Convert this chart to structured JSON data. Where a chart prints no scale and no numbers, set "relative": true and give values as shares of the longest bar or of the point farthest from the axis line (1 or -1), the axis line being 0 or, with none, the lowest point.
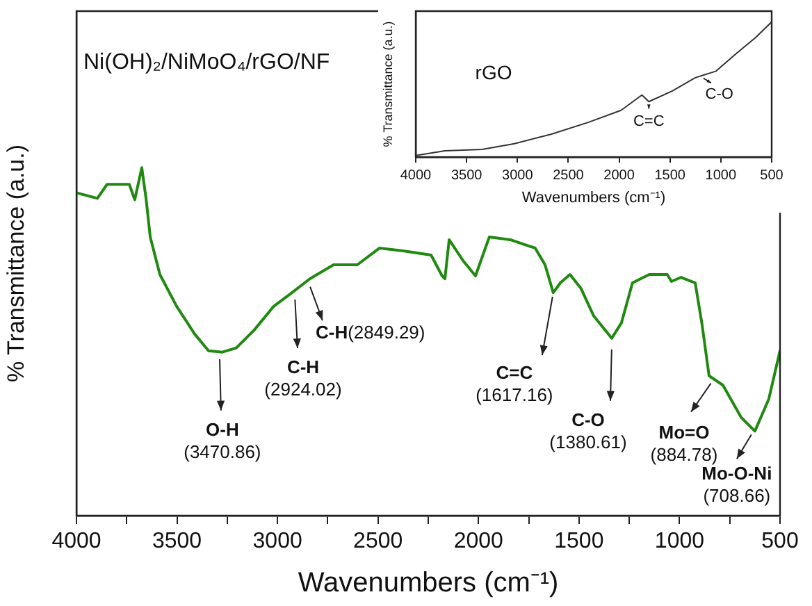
{
  "chart_data": [
    {
      "type": "line",
      "title": "Ni(OH)₂/NiMoO₄/rGO/NF",
      "xlabel": "Wavenumbers (cm⁻¹)",
      "ylabel": "% Transmittance (a.u.)",
      "relative": true,
      "tick_labels": "x",
      "grid": false,
      "legend": false,
      "marker": "none",
      "line_style": "solid",
      "xlim": [
        4000,
        500
      ],
      "xticks": [
        4000,
        {
          "value": 3750,
          "label": null
        },
        3500,
        {
          "value": 3250,
          "label": null
        },
        3000,
        {
          "value": 2750,
          "label": null
        },
        2500,
        {
          "value": 2250,
          "label": null
        },
        2000,
        {
          "value": 1750,
          "label": null
        },
        1500,
        {
          "value": 1250,
          "label": null
        },
        1000,
        {
          "value": 750,
          "label": null
        },
        500
      ],
      "series": [
        {
          "color": "#1f8a0f",
          "x": [
            4000,
            3896,
            3848,
            3737,
            3710,
            3675,
            3654,
            3633,
            3585,
            3502,
            3412,
            3343,
            3274,
            3205,
            3115,
            3018,
            2928,
            2838,
            2721,
            2603,
            2492,
            2375,
            2236,
            2181,
            2167,
            2146,
            2077,
            2015,
            1946,
            1842,
            1718,
            1669,
            1628,
            1593,
            1545,
            1490,
            1427,
            1337,
            1289,
            1234,
            1151,
            1061,
            1040,
            992,
            922,
            888,
            853,
            784,
            694,
            625,
            556,
            500
          ],
          "values": [
            0.928,
            0.912,
            0.952,
            0.952,
            0.908,
            1.0,
            0.912,
            0.801,
            0.693,
            0.602,
            0.522,
            0.474,
            0.47,
            0.482,
            0.534,
            0.602,
            0.641,
            0.681,
            0.721,
            0.721,
            0.769,
            0.761,
            0.749,
            0.689,
            0.681,
            0.793,
            0.733,
            0.689,
            0.801,
            0.793,
            0.769,
            0.721,
            0.641,
            0.669,
            0.693,
            0.653,
            0.574,
            0.51,
            0.554,
            0.669,
            0.693,
            0.693,
            0.673,
            0.685,
            0.669,
            0.55,
            0.402,
            0.375,
            0.283,
            0.243,
            0.335,
            0.474
          ]
        }
      ],
      "annotations": [
        {
          "text": "O-H\n(3470.86)",
          "x": 3288,
          "y": 0.462
        },
        {
          "text": "C-H\n(2924.02)",
          "x": 2914,
          "y": 0.633
        },
        {
          "text": "C-H(2849.29)",
          "x": 2845,
          "y": 0.669
        },
        {
          "text": "C=C\n(1617.16)",
          "x": 1628,
          "y": 0.641
        },
        {
          "text": "C-O\n(1380.61)",
          "x": 1337,
          "y": 0.49
        },
        {
          "text": "Mo=O\n(884.78)",
          "x": 832,
          "y": 0.39
        },
        {
          "text": "Mo-O-Ni\n(708.66)",
          "x": 632,
          "y": 0.243
        }
      ]
    },
    {
      "type": "line",
      "xlabel": "Wavenumbers (cm⁻¹)",
      "ylabel": "% Transmittance (a.u.)",
      "relative": true,
      "tick_labels": "x",
      "grid": false,
      "legend": false,
      "marker": "none",
      "line_style": "solid",
      "xlim": [
        4000,
        500
      ],
      "xticks": [
        4000,
        3500,
        3000,
        2500,
        2000,
        1500,
        1000,
        500
      ],
      "series": [
        {
          "color": "#333333",
          "x": [
            4000,
            3713,
            3348,
            3029,
            2665,
            2300,
            1981,
            1776,
            1708,
            1480,
            1252,
            1047,
            842,
            660,
            500
          ],
          "values": [
            0.011,
            0.046,
            0.057,
            0.099,
            0.17,
            0.258,
            0.346,
            0.459,
            0.41,
            0.488,
            0.587,
            0.636,
            0.77,
            0.883,
            1.0
          ]
        }
      ],
      "annotations": [
        "rGO",
        {
          "text": "C=C",
          "x": 1708,
          "y": 0.41
        },
        {
          "text": "C-O",
          "x": 1206,
          "y": 0.6
        }
      ]
    }
  ]
}
